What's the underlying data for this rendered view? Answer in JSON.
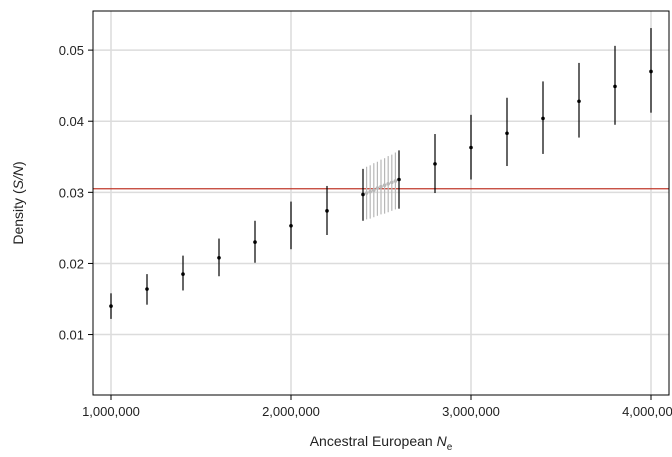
{
  "chart_data": {
    "type": "scatter",
    "xlabel": {
      "text": "Ancestral European ",
      "italic": "N",
      "subscript": "e"
    },
    "ylabel": {
      "pre": "Density (",
      "italic": "S/N",
      "post": ")"
    },
    "xlim": [
      900000,
      4100000
    ],
    "ylim": [
      0.0015,
      0.0555
    ],
    "x_ticks": [
      1000000,
      2000000,
      3000000,
      4000000
    ],
    "x_tick_labels": [
      "1,000,000",
      "2,000,000",
      "3,000,000",
      "4,000,000"
    ],
    "y_ticks": [
      0.01,
      0.02,
      0.03,
      0.04,
      0.05
    ],
    "y_tick_labels": [
      "0.01",
      "0.02",
      "0.03",
      "0.04",
      "0.05"
    ],
    "grid": true,
    "reference_line": {
      "y": 0.0305,
      "color": "#c0392b"
    },
    "series": [
      {
        "color": "#000000",
        "points": [
          {
            "x": 1000000,
            "y": 0.014,
            "low": 0.0122,
            "high": 0.0158
          },
          {
            "x": 1200000,
            "y": 0.0164,
            "low": 0.0142,
            "high": 0.0185
          },
          {
            "x": 1400000,
            "y": 0.0185,
            "low": 0.0162,
            "high": 0.0211
          },
          {
            "x": 1600000,
            "y": 0.0208,
            "low": 0.0182,
            "high": 0.0235
          },
          {
            "x": 1800000,
            "y": 0.023,
            "low": 0.0201,
            "high": 0.026
          },
          {
            "x": 2000000,
            "y": 0.0253,
            "low": 0.022,
            "high": 0.0287
          },
          {
            "x": 2200000,
            "y": 0.0274,
            "low": 0.024,
            "high": 0.0309
          },
          {
            "x": 2400000,
            "y": 0.0297,
            "low": 0.026,
            "high": 0.0333
          },
          {
            "x": 2600000,
            "y": 0.0318,
            "low": 0.0277,
            "high": 0.0359
          },
          {
            "x": 2800000,
            "y": 0.034,
            "low": 0.0299,
            "high": 0.0382
          },
          {
            "x": 3000000,
            "y": 0.0363,
            "low": 0.0318,
            "high": 0.0409
          },
          {
            "x": 3200000,
            "y": 0.0383,
            "low": 0.0337,
            "high": 0.0433
          },
          {
            "x": 3400000,
            "y": 0.0404,
            "low": 0.0354,
            "high": 0.0456
          },
          {
            "x": 3600000,
            "y": 0.0428,
            "low": 0.0377,
            "high": 0.0482
          },
          {
            "x": 3800000,
            "y": 0.0449,
            "low": 0.0395,
            "high": 0.0506
          },
          {
            "x": 4000000,
            "y": 0.047,
            "low": 0.0412,
            "high": 0.0531
          }
        ]
      },
      {
        "color": "#b8b8b8",
        "points": [
          {
            "x": 2420000,
            "y": 0.0299,
            "low": 0.0262,
            "high": 0.0336
          },
          {
            "x": 2440000,
            "y": 0.0301,
            "low": 0.0263,
            "high": 0.0338
          },
          {
            "x": 2460000,
            "y": 0.0303,
            "low": 0.0265,
            "high": 0.0341
          },
          {
            "x": 2480000,
            "y": 0.0306,
            "low": 0.0267,
            "high": 0.0343
          },
          {
            "x": 2500000,
            "y": 0.0308,
            "low": 0.0269,
            "high": 0.0346
          },
          {
            "x": 2520000,
            "y": 0.031,
            "low": 0.027,
            "high": 0.0348
          },
          {
            "x": 2540000,
            "y": 0.0312,
            "low": 0.0272,
            "high": 0.0351
          },
          {
            "x": 2560000,
            "y": 0.0314,
            "low": 0.0274,
            "high": 0.0353
          },
          {
            "x": 2580000,
            "y": 0.0316,
            "low": 0.0276,
            "high": 0.0356
          }
        ]
      }
    ]
  }
}
